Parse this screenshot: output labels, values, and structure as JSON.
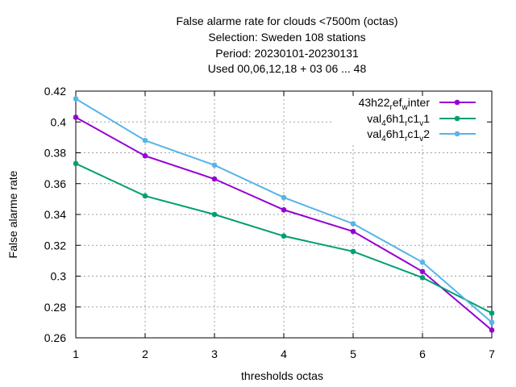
{
  "chart_data": {
    "type": "line",
    "title_lines": [
      "False alarme rate  for clouds <7500m (octas)",
      "Selection: Sweden     108 stations",
      "Period: 20230101-20230131",
      "Used  00,06,12,18  + 03 06 ... 48"
    ],
    "xlabel": "thresholds octas",
    "ylabel": "False alarme rate",
    "x": [
      1,
      2,
      3,
      4,
      5,
      6,
      7
    ],
    "xlim": [
      1,
      7
    ],
    "ylim": [
      0.26,
      0.42
    ],
    "yticks": [
      "0.26",
      "0.28",
      "0.3",
      "0.32",
      "0.34",
      "0.36",
      "0.38",
      "0.4",
      "0.42"
    ],
    "xticks": [
      "1",
      "2",
      "3",
      "4",
      "5",
      "6",
      "7"
    ],
    "grid": true,
    "legend_position": "top-right",
    "series": [
      {
        "name": "43h22_ref_winter",
        "legend_main": "43h22",
        "legend_sub1": "r",
        "legend_mid": "ef",
        "legend_sub2": "w",
        "legend_end": "inter",
        "color": "#9400d3",
        "values": [
          0.403,
          0.378,
          0.363,
          0.343,
          0.329,
          0.303,
          0.265
        ]
      },
      {
        "name": "val_46h1_rc1_v1",
        "legend_main": "val",
        "legend_sub1": "4",
        "legend_mid": "6h1",
        "legend_sub2": "r",
        "legend_mid2": "c1",
        "legend_sub3": "v",
        "legend_end": "1",
        "color": "#009e73",
        "values": [
          0.373,
          0.352,
          0.34,
          0.326,
          0.316,
          0.299,
          0.276
        ]
      },
      {
        "name": "val_46h1_rc1_v2",
        "legend_main": "val",
        "legend_sub1": "4",
        "legend_mid": "6h1",
        "legend_sub2": "r",
        "legend_mid2": "c1",
        "legend_sub3": "v",
        "legend_end": "2",
        "color": "#56b4e9",
        "values": [
          0.415,
          0.388,
          0.372,
          0.351,
          0.334,
          0.309,
          0.27
        ]
      }
    ]
  }
}
